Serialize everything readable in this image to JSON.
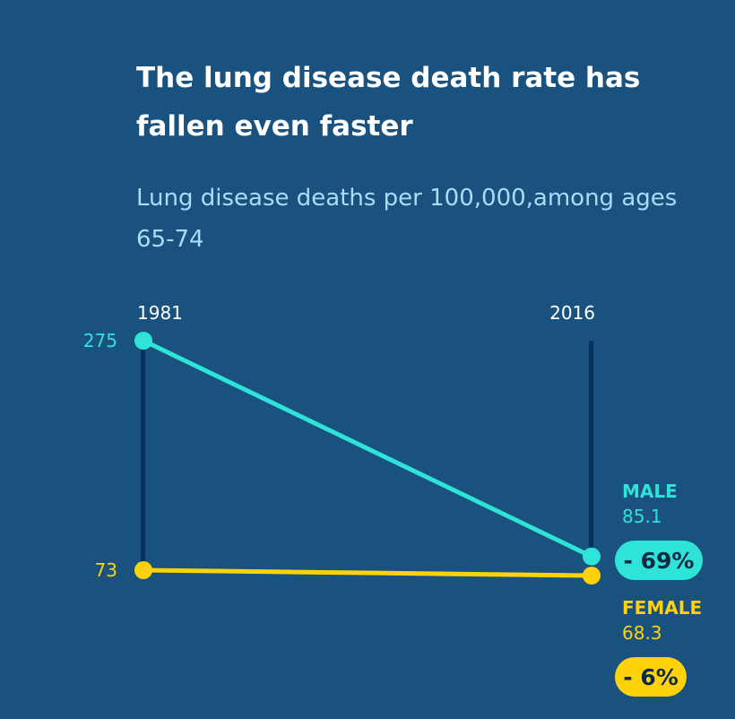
{
  "chart_data": {
    "type": "line",
    "title": "The lung disease death rate has fallen even faster",
    "subtitle": "Lung disease deaths per 100,000,among ages 65-74",
    "x": [
      "1981",
      "2016"
    ],
    "series": [
      {
        "name": "MALE",
        "values": [
          275,
          85.1
        ],
        "start_label": "275",
        "end_label": "85.1",
        "change_label": "- 69%",
        "color": "#2ee3d8"
      },
      {
        "name": "FEMALE",
        "values": [
          73,
          68.3
        ],
        "start_label": "73",
        "end_label": "68.3",
        "change_label": "- 6%",
        "color": "#ffd20a"
      }
    ],
    "ylim": [
      68.3,
      275
    ],
    "grid": false,
    "colors": {
      "background": "#19527f",
      "guide": "#0a3258",
      "subtitle": "#a9dcf7"
    }
  }
}
